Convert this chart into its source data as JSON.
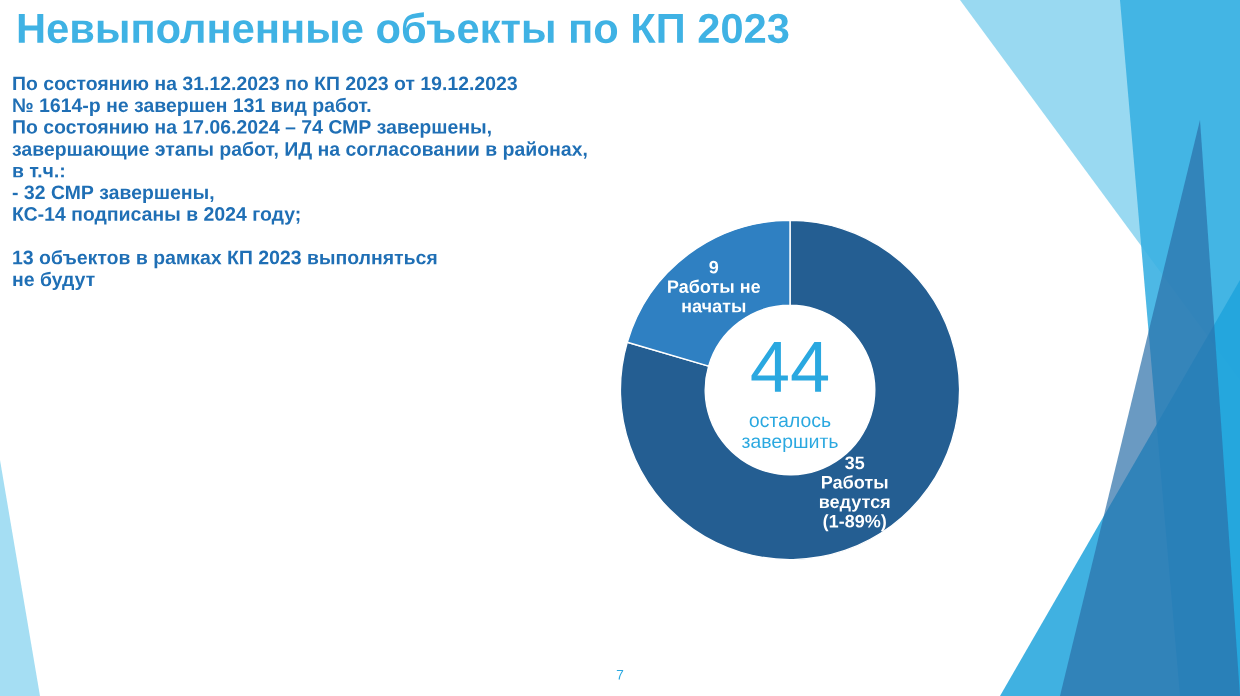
{
  "chart_data": {
    "type": "donut",
    "title": "Невыполненные объекты по КП 2023",
    "categories": [
      "Работы\nведутся\n(1-89%)",
      "Работы не\nначаты"
    ],
    "values": [
      35,
      9
    ],
    "colors": [
      "#245e92",
      "#2f80c2"
    ],
    "data_labels": true,
    "legend": false,
    "annotations": [
      "По состоянию на 31.12.2023 по КП 2023 от 19.12.2023\n№ 1614-р не завершен 131 вид работ.\nПо состоянию на 17.06.2024 – 74 СМР завершены,\nзавершающие этапы работ, ИД на согласовании в районах,\nв т.ч.:\n- 32 СМР завершены,\nКС-14 подписаны в 2024 году;\n\n13 объектов в рамках КП 2023 выполняться\nне будут",
      "44",
      "осталось\nзавершить",
      "7"
    ]
  }
}
